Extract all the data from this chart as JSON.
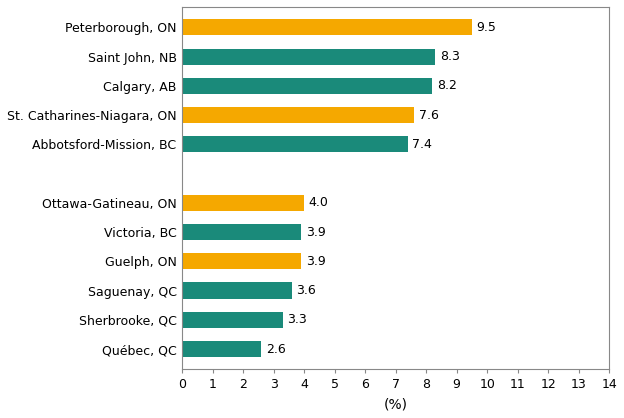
{
  "categories": [
    "Québec, QC",
    "Sherbrooke, QC",
    "Saguenay, QC",
    "Guelph, ON",
    "Victoria, BC",
    "Ottawa-Gatineau, ON",
    "Abbotsford-Mission, BC",
    "St. Catharines-Niagara, ON",
    "Calgary, AB",
    "Saint John, NB",
    "Peterborough, ON"
  ],
  "values": [
    2.6,
    3.3,
    3.6,
    3.9,
    3.9,
    4.0,
    7.4,
    7.6,
    8.2,
    8.3,
    9.5
  ],
  "colors": [
    "#1a8a7a",
    "#1a8a7a",
    "#1a8a7a",
    "#f5a800",
    "#1a8a7a",
    "#f5a800",
    "#1a8a7a",
    "#f5a800",
    "#1a8a7a",
    "#1a8a7a",
    "#f5a800"
  ],
  "y_positions": [
    0,
    1,
    2,
    3,
    4,
    5,
    7,
    8,
    9,
    10,
    11
  ],
  "xlim": [
    0,
    14
  ],
  "xticks": [
    0,
    1,
    2,
    3,
    4,
    5,
    6,
    7,
    8,
    9,
    10,
    11,
    12,
    13,
    14
  ],
  "xlabel": "(%)",
  "background_color": "#ffffff",
  "bar_height": 0.55,
  "value_labels": [
    "2.6",
    "3.3",
    "3.6",
    "3.9",
    "3.9",
    "4.0",
    "7.4",
    "7.6",
    "8.2",
    "8.3",
    "9.5"
  ],
  "label_fontsize": 9,
  "tick_fontsize": 9,
  "xlabel_fontsize": 10,
  "spine_color": "#888888"
}
